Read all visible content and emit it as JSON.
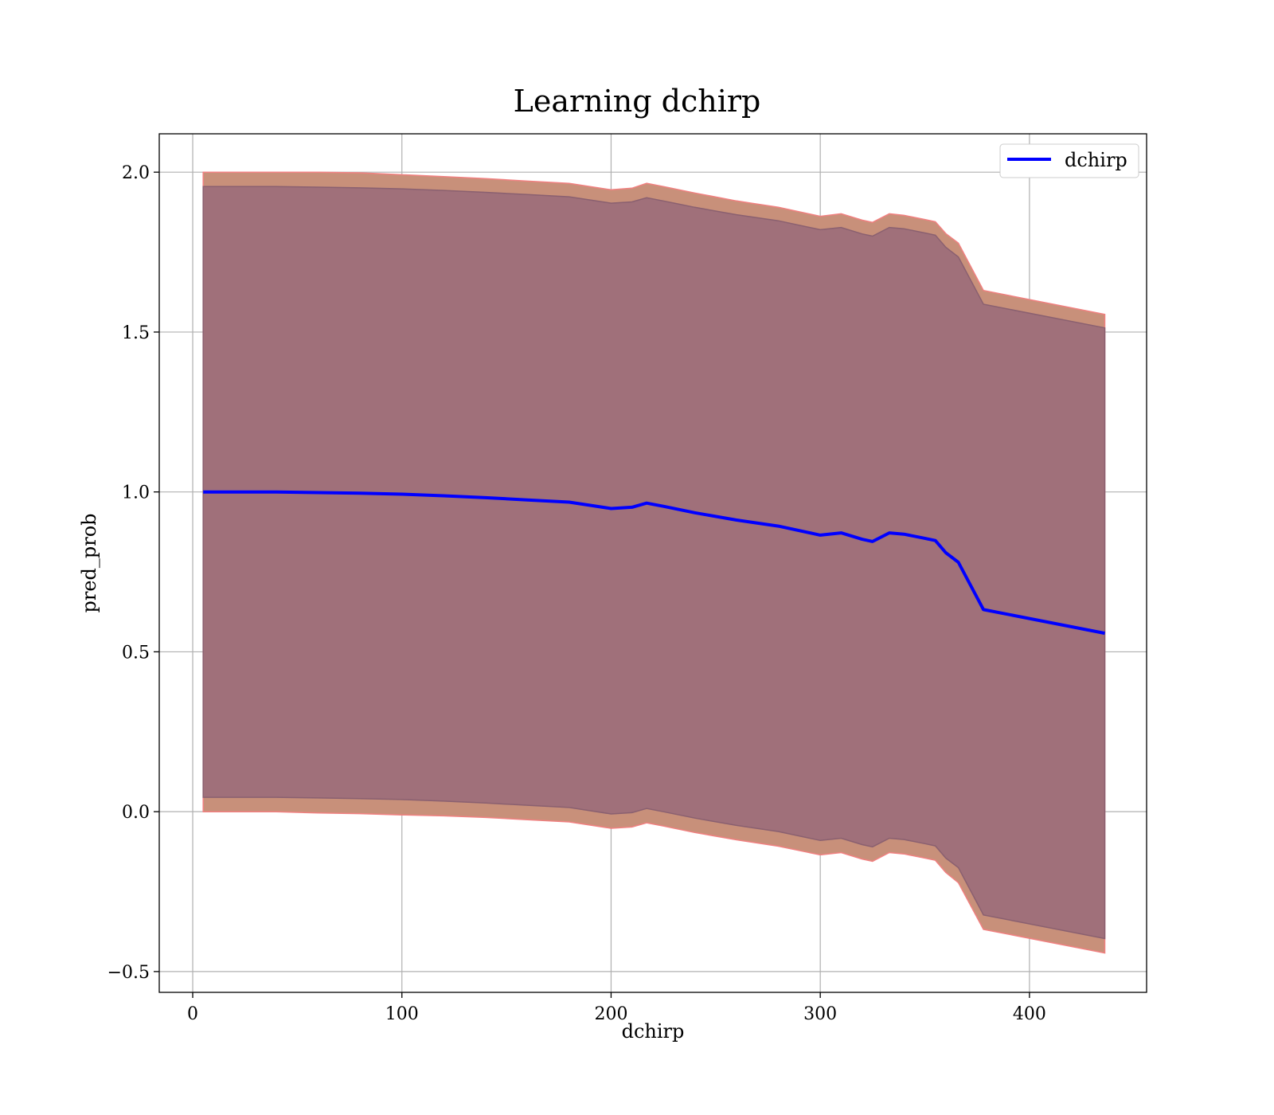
{
  "chart_data": {
    "type": "line",
    "title": "Learning dchirp",
    "xlabel": "dchirp",
    "ylabel": "pred_prob",
    "xlim": [
      -16,
      456
    ],
    "ylim": [
      -0.565,
      2.12
    ],
    "x_ticks": [
      0,
      100,
      200,
      300,
      400
    ],
    "x_tick_labels": [
      "0",
      "100",
      "200",
      "300",
      "400"
    ],
    "y_ticks": [
      -0.5,
      0.0,
      0.5,
      1.0,
      1.5,
      2.0
    ],
    "y_tick_labels": [
      "−0.5",
      "0.0",
      "0.5",
      "1.0",
      "1.5",
      "2.0"
    ],
    "grid": true,
    "legend": {
      "position": "top-right",
      "entries": [
        "dchirp"
      ]
    },
    "colors": {
      "line": "#0000ff",
      "band_outer": "#c8907a",
      "band_inner": "#a0707a",
      "band_edge": "#f08080"
    },
    "series": [
      {
        "name": "dchirp",
        "x": [
          5,
          20,
          40,
          60,
          80,
          100,
          120,
          140,
          160,
          180,
          200,
          210,
          217,
          225,
          240,
          260,
          280,
          300,
          310,
          320,
          325,
          333,
          340,
          350,
          355,
          360,
          366,
          378,
          436
        ],
        "y": [
          1.0,
          1.0,
          1.0,
          0.998,
          0.996,
          0.993,
          0.988,
          0.982,
          0.975,
          0.968,
          0.948,
          0.952,
          0.965,
          0.955,
          0.935,
          0.912,
          0.893,
          0.865,
          0.872,
          0.852,
          0.845,
          0.872,
          0.868,
          0.855,
          0.848,
          0.81,
          0.78,
          0.632,
          0.558
        ]
      }
    ],
    "bands": [
      {
        "x": [
          5,
          20,
          40,
          60,
          80,
          100,
          120,
          140,
          160,
          180,
          200,
          210,
          217,
          225,
          240,
          260,
          280,
          300,
          310,
          320,
          325,
          333,
          340,
          350,
          355,
          360,
          366,
          378,
          436
        ],
        "upper": [
          2.0,
          2.0,
          2.0,
          2.0,
          1.998,
          1.992,
          1.986,
          1.98,
          1.972,
          1.965,
          1.945,
          1.95,
          1.965,
          1.955,
          1.935,
          1.91,
          1.89,
          1.862,
          1.87,
          1.85,
          1.843,
          1.87,
          1.865,
          1.852,
          1.845,
          1.808,
          1.778,
          1.63,
          1.555
        ],
        "lower": [
          0.0,
          0.0,
          0.0,
          -0.004,
          -0.006,
          -0.01,
          -0.013,
          -0.018,
          -0.025,
          -0.032,
          -0.052,
          -0.048,
          -0.035,
          -0.045,
          -0.065,
          -0.088,
          -0.108,
          -0.135,
          -0.128,
          -0.148,
          -0.155,
          -0.128,
          -0.132,
          -0.145,
          -0.152,
          -0.19,
          -0.222,
          -0.368,
          -0.442
        ]
      },
      {
        "x": [
          5,
          20,
          40,
          60,
          80,
          100,
          120,
          140,
          160,
          180,
          200,
          210,
          217,
          225,
          240,
          260,
          280,
          300,
          310,
          320,
          325,
          333,
          340,
          350,
          355,
          360,
          366,
          378,
          436
        ],
        "upper": [
          1.955,
          1.955,
          1.955,
          1.953,
          1.951,
          1.948,
          1.943,
          1.937,
          1.93,
          1.923,
          1.903,
          1.907,
          1.92,
          1.91,
          1.89,
          1.867,
          1.848,
          1.82,
          1.827,
          1.807,
          1.8,
          1.827,
          1.823,
          1.81,
          1.803,
          1.765,
          1.735,
          1.587,
          1.513
        ],
        "lower": [
          0.045,
          0.045,
          0.045,
          0.043,
          0.041,
          0.038,
          0.033,
          0.027,
          0.02,
          0.013,
          -0.007,
          -0.003,
          0.01,
          0.0,
          -0.02,
          -0.043,
          -0.062,
          -0.09,
          -0.083,
          -0.103,
          -0.11,
          -0.083,
          -0.087,
          -0.1,
          -0.107,
          -0.145,
          -0.175,
          -0.323,
          -0.397
        ]
      }
    ]
  }
}
